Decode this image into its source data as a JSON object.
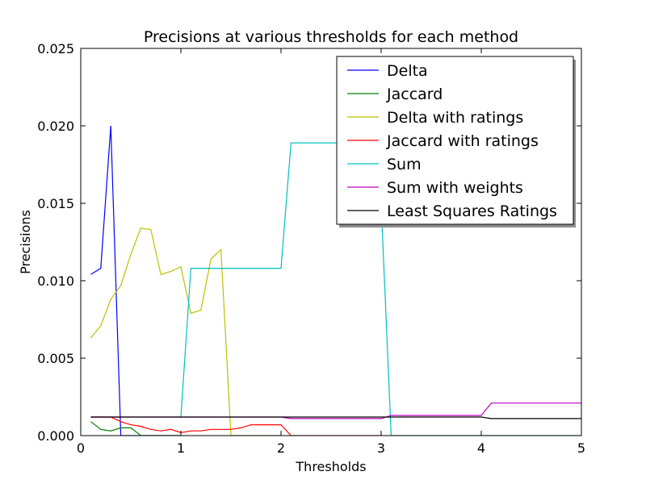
{
  "chart_data": {
    "type": "line",
    "title": "Precisions at various thresholds for each method",
    "xlabel": "Thresholds",
    "ylabel": "Precisions",
    "xlim": [
      0,
      5
    ],
    "ylim": [
      0,
      0.025
    ],
    "grid": false,
    "legend_position": "top-right",
    "x_ticks": [
      0,
      1,
      2,
      3,
      4,
      5
    ],
    "x_tick_labels": [
      "0",
      "1",
      "2",
      "3",
      "4",
      "5"
    ],
    "y_ticks": [
      0,
      0.005,
      0.01,
      0.015,
      0.02,
      0.025
    ],
    "y_tick_labels": [
      "0.000",
      "0.005",
      "0.010",
      "0.015",
      "0.020",
      "0.025"
    ],
    "series": [
      {
        "name": "Delta",
        "color": "#0000ff",
        "x": [
          0.1,
          0.2,
          0.3,
          0.4,
          0.5,
          0.6,
          0.7,
          0.8,
          0.9,
          1.0
        ],
        "y": [
          0.0104,
          0.0108,
          0.02,
          0.0,
          0.0,
          0.0,
          0.0,
          0.0,
          0.0,
          0.0
        ]
      },
      {
        "name": "Jaccard",
        "color": "#008000",
        "x": [
          0.1,
          0.2,
          0.3,
          0.4,
          0.5,
          0.6,
          0.7,
          0.8,
          0.9,
          1.0
        ],
        "y": [
          0.0009,
          0.0004,
          0.0003,
          0.0005,
          0.0005,
          0.0,
          0.0,
          0.0,
          0.0,
          0.0
        ]
      },
      {
        "name": "Delta with ratings",
        "color": "#bfbf00",
        "x": [
          0.1,
          0.2,
          0.3,
          0.4,
          0.5,
          0.6,
          0.7,
          0.8,
          0.9,
          1.0,
          1.1,
          1.2,
          1.3,
          1.4,
          1.5,
          1.6,
          1.7,
          1.8,
          1.9,
          2.0
        ],
        "y": [
          0.0063,
          0.0071,
          0.0088,
          0.0097,
          0.0117,
          0.0134,
          0.0133,
          0.0104,
          0.0106,
          0.0109,
          0.0079,
          0.0081,
          0.0114,
          0.012,
          0.0,
          0.0,
          0.0,
          0.0,
          0.0,
          0.0
        ]
      },
      {
        "name": "Jaccard with ratings",
        "color": "#ff0000",
        "x": [
          0.1,
          0.2,
          0.3,
          0.4,
          0.5,
          0.6,
          0.7,
          0.8,
          0.9,
          1.0,
          1.1,
          1.2,
          1.3,
          1.4,
          1.5,
          1.6,
          1.7,
          1.8,
          1.9,
          2.0,
          2.1,
          2.2,
          2.3,
          2.4,
          2.5,
          2.6,
          2.7,
          2.8,
          2.9,
          3.0
        ],
        "y": [
          0.0012,
          0.0012,
          0.0012,
          0.0009,
          0.0007,
          0.0006,
          0.0004,
          0.0003,
          0.0004,
          0.0002,
          0.0003,
          0.0003,
          0.0004,
          0.0004,
          0.0004,
          0.0005,
          0.0007,
          0.0007,
          0.0007,
          0.0007,
          0.0,
          0.0,
          0.0,
          0.0,
          0.0,
          0.0,
          0.0,
          0.0,
          0.0,
          0.0
        ]
      },
      {
        "name": "Sum",
        "color": "#00bfbf",
        "x": [
          1.0,
          1.1,
          1.2,
          1.3,
          1.4,
          1.5,
          1.6,
          1.7,
          1.8,
          1.9,
          2.0,
          2.1,
          2.2,
          2.3,
          2.4,
          2.5,
          2.6,
          2.7,
          2.8,
          2.9,
          3.0,
          3.1,
          3.2,
          3.3,
          3.4,
          3.5,
          3.6,
          3.7,
          3.8,
          3.9,
          4.0,
          4.1,
          4.2,
          4.3,
          4.4,
          4.5,
          4.6,
          4.7,
          4.8,
          4.9,
          5.0
        ],
        "y": [
          0.0012,
          0.0108,
          0.0108,
          0.0108,
          0.0108,
          0.0108,
          0.0108,
          0.0108,
          0.0108,
          0.0108,
          0.0108,
          0.0189,
          0.0189,
          0.0189,
          0.0189,
          0.0189,
          0.0189,
          0.0189,
          0.0189,
          0.0189,
          0.015,
          0.0,
          0.0,
          0.0,
          0.0,
          0.0,
          0.0,
          0.0,
          0.0,
          0.0,
          0.0,
          0.0,
          0.0,
          0.0,
          0.0,
          0.0,
          0.0,
          0.0,
          0.0,
          0.0,
          0.0
        ]
      },
      {
        "name": "Sum with weights",
        "color": "#bf00bf",
        "x": [
          0.1,
          1.0,
          2.0,
          2.1,
          3.0,
          3.1,
          4.0,
          4.1,
          4.5,
          5.0
        ],
        "y": [
          0.0012,
          0.0012,
          0.0012,
          0.0011,
          0.0011,
          0.0013,
          0.0013,
          0.0021,
          0.0021,
          0.0021
        ]
      },
      {
        "name": "Least Squares Ratings",
        "color": "#000000",
        "x": [
          0.1,
          1.0,
          2.0,
          3.0,
          3.1,
          4.0,
          4.1,
          4.5,
          5.0
        ],
        "y": [
          0.0012,
          0.0012,
          0.0012,
          0.0012,
          0.0012,
          0.0012,
          0.0011,
          0.0011,
          0.0011
        ]
      }
    ]
  }
}
